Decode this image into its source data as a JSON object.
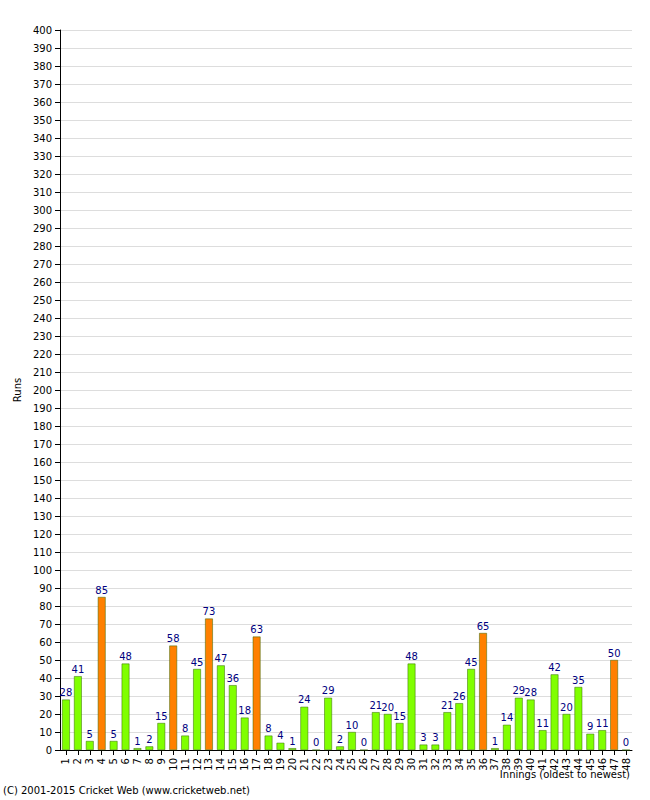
{
  "chart_data": {
    "type": "bar",
    "x_label": "Innings (oldest to newest)",
    "y_label": "Runs",
    "annotation": "(C) 2001-2015 Cricket Web (www.cricketweb.net)",
    "categories": [
      "1",
      "2",
      "3",
      "4",
      "5",
      "6",
      "7",
      "8",
      "9",
      "10",
      "11",
      "12",
      "13",
      "14",
      "15",
      "16",
      "17",
      "18",
      "19",
      "20",
      "21",
      "22",
      "23",
      "24",
      "25",
      "26",
      "27",
      "28",
      "29",
      "30",
      "31",
      "32",
      "33",
      "34",
      "35",
      "36",
      "37",
      "38",
      "39",
      "40",
      "41",
      "42",
      "43",
      "44",
      "45",
      "46",
      "47",
      "48"
    ],
    "values": [
      28,
      41,
      5,
      85,
      5,
      48,
      1,
      2,
      15,
      58,
      8,
      45,
      73,
      47,
      36,
      18,
      63,
      8,
      4,
      1,
      24,
      0,
      29,
      2,
      10,
      0,
      21,
      20,
      15,
      48,
      3,
      3,
      21,
      26,
      45,
      65,
      1,
      14,
      29,
      28,
      11,
      42,
      20,
      35,
      9,
      11,
      50,
      0
    ],
    "colors": [
      "#80ff00",
      "#80ff00",
      "#80ff00",
      "#ff8000",
      "#80ff00",
      "#80ff00",
      "#80ff00",
      "#80ff00",
      "#80ff00",
      "#ff8000",
      "#80ff00",
      "#80ff00",
      "#ff8000",
      "#80ff00",
      "#80ff00",
      "#80ff00",
      "#ff8000",
      "#80ff00",
      "#80ff00",
      "#80ff00",
      "#80ff00",
      "#80ff00",
      "#80ff00",
      "#80ff00",
      "#80ff00",
      "#80ff00",
      "#80ff00",
      "#80ff00",
      "#80ff00",
      "#80ff00",
      "#80ff00",
      "#80ff00",
      "#80ff00",
      "#80ff00",
      "#80ff00",
      "#ff8000",
      "#80ff00",
      "#80ff00",
      "#80ff00",
      "#80ff00",
      "#80ff00",
      "#80ff00",
      "#80ff00",
      "#80ff00",
      "#80ff00",
      "#80ff00",
      "#ff8000",
      "#80ff00"
    ],
    "ylim": [
      0,
      400
    ],
    "yticks": [
      0,
      10,
      20,
      30,
      40,
      50,
      60,
      70,
      80,
      90,
      100,
      110,
      120,
      130,
      140,
      150,
      160,
      170,
      180,
      190,
      200,
      210,
      220,
      230,
      240,
      250,
      260,
      270,
      280,
      290,
      300,
      310,
      320,
      330,
      340,
      350,
      360,
      370,
      380,
      390,
      400
    ],
    "grid": true,
    "data_labels": true
  }
}
